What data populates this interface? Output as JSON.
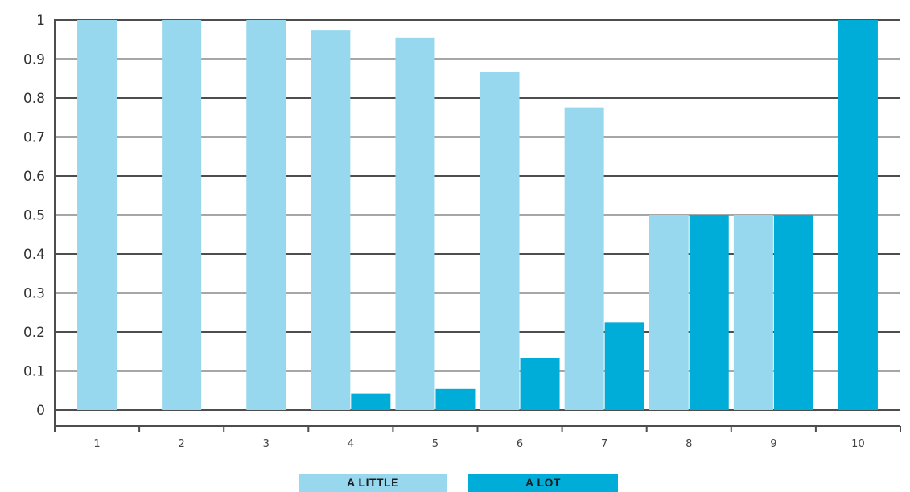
{
  "chart_data": {
    "type": "bar",
    "categories": [
      "1",
      "2",
      "3",
      "4",
      "5",
      "6",
      "7",
      "8",
      "9",
      "10"
    ],
    "series": [
      {
        "name": "A LITTLE",
        "color": "#97d8ee",
        "values": [
          1,
          1,
          1,
          0.975,
          0.955,
          0.868,
          0.776,
          0.5,
          0.5,
          null
        ]
      },
      {
        "name": "A LOT",
        "color": "#00acd8",
        "values": [
          null,
          null,
          null,
          0.042,
          0.054,
          0.134,
          0.224,
          0.5,
          0.5,
          1
        ]
      }
    ],
    "ylim": [
      0,
      1
    ],
    "yticks": [
      "0",
      "0.1",
      "0.2",
      "0.3",
      "0.4",
      "0.5",
      "0.6",
      "0.7",
      "0.8",
      "0.9",
      "1"
    ],
    "grid": true,
    "legend_position": "bottom",
    "title": "",
    "xlabel": "",
    "ylabel": ""
  },
  "colors": {
    "gridline": "#4d4d4d",
    "axis": "#4d4d4d"
  }
}
